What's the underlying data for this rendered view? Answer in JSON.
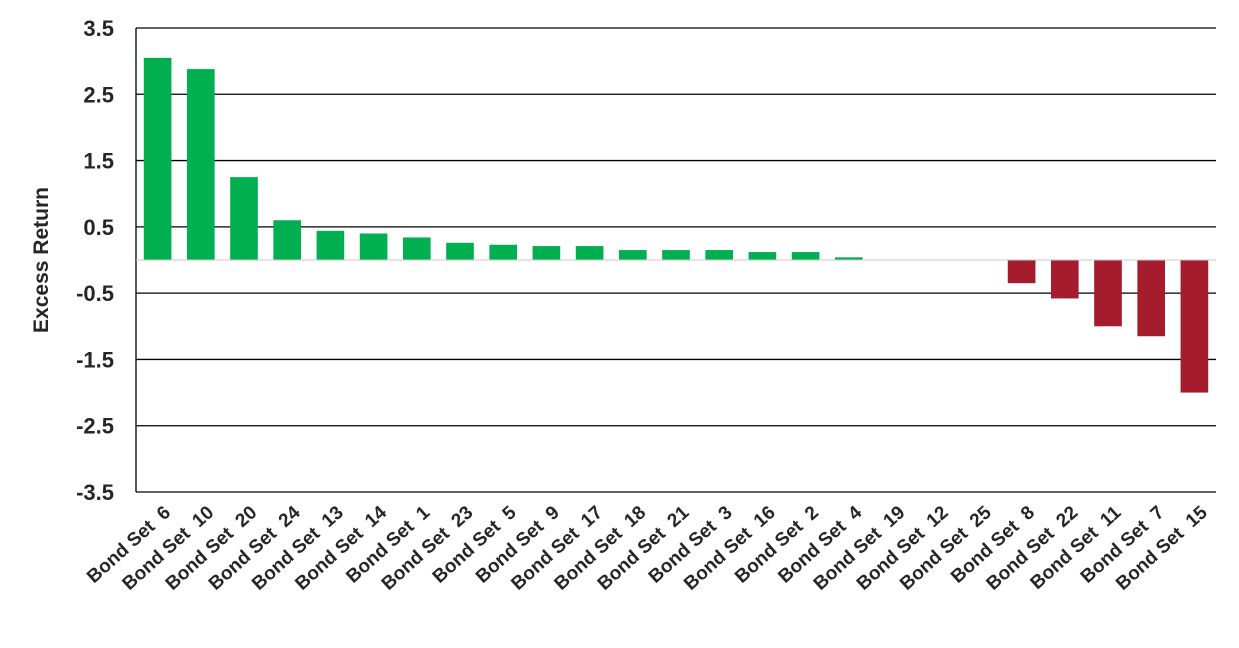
{
  "chart_data": {
    "type": "bar",
    "title": "",
    "xlabel": "",
    "ylabel": "Excess Return",
    "ylim": [
      -3.5,
      3.5
    ],
    "yticks": [
      3.5,
      2.5,
      1.5,
      0.5,
      -0.5,
      -1.5,
      -2.5,
      -3.5
    ],
    "ytick_labels": [
      "3.5",
      "2.5",
      "1.5",
      "0.5",
      "-0.5",
      "-1.5",
      "-2.5",
      "-3.5"
    ],
    "grid": true,
    "categories": [
      "Bond Set  6",
      "Bond Set  10",
      "Bond Set  20",
      "Bond Set  24",
      "Bond Set  13",
      "Bond Set  14",
      "Bond Set  1",
      "Bond Set  23",
      "Bond Set  5",
      "Bond Set  9",
      "Bond Set  17",
      "Bond Set  18",
      "Bond Set  21",
      "Bond Set  3",
      "Bond Set  16",
      "Bond Set  2",
      "Bond Set  4",
      "Bond Set  19",
      "Bond Set  12",
      "Bond Set  25",
      "Bond Set  8",
      "Bond Set  22",
      "Bond Set  11",
      "Bond Set  7",
      "Bond Set  15"
    ],
    "values": [
      3.05,
      2.88,
      1.25,
      0.6,
      0.44,
      0.4,
      0.34,
      0.26,
      0.23,
      0.21,
      0.21,
      0.15,
      0.15,
      0.15,
      0.12,
      0.12,
      0.04,
      0.0,
      0.0,
      0.0,
      -0.35,
      -0.58,
      -1.0,
      -1.15,
      -2.0
    ],
    "colors": {
      "positive": "#00b050",
      "negative": "#a51d2d"
    }
  }
}
